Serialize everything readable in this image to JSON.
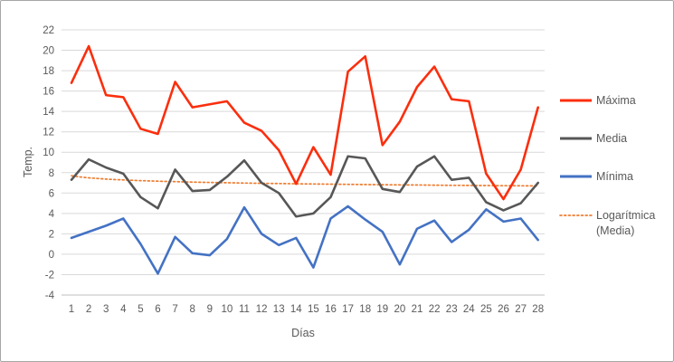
{
  "chart_data": {
    "type": "line",
    "title": "",
    "xlabel": "Días",
    "ylabel": "Temp.",
    "ylim": [
      -4,
      22
    ],
    "yticks": [
      -4,
      -2,
      0,
      2,
      4,
      6,
      8,
      10,
      12,
      14,
      16,
      18,
      20,
      22
    ],
    "x": [
      1,
      2,
      3,
      4,
      5,
      6,
      7,
      8,
      9,
      10,
      11,
      12,
      13,
      14,
      15,
      16,
      17,
      18,
      19,
      20,
      21,
      22,
      23,
      24,
      25,
      26,
      27,
      28
    ],
    "grid": true,
    "legend_position": "right",
    "series": [
      {
        "name": "Máxima",
        "color": "#fb2e0d",
        "values": [
          16.8,
          20.4,
          15.6,
          15.4,
          12.3,
          11.8,
          16.9,
          14.4,
          14.7,
          15.0,
          12.9,
          12.1,
          10.2,
          6.9,
          10.5,
          7.8,
          17.9,
          19.4,
          10.7,
          13.0,
          16.4,
          18.4,
          15.2,
          15.0,
          7.9,
          5.4,
          8.3,
          14.4
        ]
      },
      {
        "name": "Media",
        "color": "#575757",
        "values": [
          7.3,
          9.3,
          8.5,
          7.9,
          5.6,
          4.5,
          8.3,
          6.2,
          6.3,
          7.6,
          9.2,
          7.0,
          6.0,
          3.7,
          4.0,
          5.6,
          9.6,
          9.4,
          6.4,
          6.1,
          8.6,
          9.6,
          7.3,
          7.5,
          5.1,
          4.3,
          5.0,
          7.0
        ]
      },
      {
        "name": "Mínima",
        "color": "#4472c4",
        "values": [
          1.6,
          2.2,
          2.8,
          3.5,
          1.0,
          -1.9,
          1.7,
          0.1,
          -0.1,
          1.5,
          4.6,
          2.0,
          0.9,
          1.6,
          -1.3,
          3.5,
          4.7,
          3.4,
          2.2,
          -1.0,
          2.5,
          3.3,
          1.2,
          2.4,
          4.4,
          3.2,
          3.5,
          1.4
        ]
      }
    ],
    "trendline": {
      "name": "Logarítmica (Media)",
      "of_series": "Media",
      "kind": "logarithmic",
      "color": "#ed7d31",
      "style": "dotted",
      "a": 7.7,
      "b": -0.3,
      "formula": "y = 7.7 - 0.3·ln(x)"
    },
    "colors": {
      "gridline": "#d9d9d9",
      "axis_line": "#bfbfbf",
      "axis_text": "#595959",
      "frame_border": "#a6a6a6",
      "background": "#ffffff"
    }
  },
  "legend": {
    "items": [
      {
        "label": "Máxima"
      },
      {
        "label": "Media"
      },
      {
        "label": "Mínima"
      },
      {
        "label": "Logarítmica (Media)",
        "line1": "Logarítmica",
        "line2": "(Media)"
      }
    ]
  }
}
